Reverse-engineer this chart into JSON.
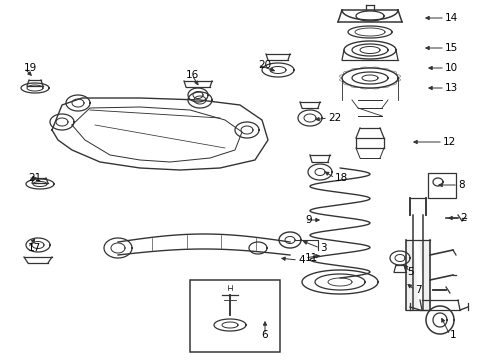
{
  "bg_color": "#ffffff",
  "line_color": "#333333",
  "fig_width": 4.89,
  "fig_height": 3.6,
  "dpi": 100,
  "font_size": 7.5,
  "lw_main": 0.9,
  "label_configs": [
    [
      "1",
      450,
      335,
      440,
      315,
      "left"
    ],
    [
      "2",
      460,
      218,
      445,
      218,
      "left"
    ],
    [
      "3",
      320,
      248,
      300,
      240,
      "left"
    ],
    [
      "4",
      298,
      260,
      278,
      258,
      "left"
    ],
    [
      "5",
      410,
      272,
      402,
      262,
      "center"
    ],
    [
      "6",
      265,
      335,
      265,
      318,
      "center"
    ],
    [
      "7",
      415,
      290,
      405,
      282,
      "left"
    ],
    [
      "8",
      458,
      185,
      435,
      185,
      "left"
    ],
    [
      "9",
      305,
      220,
      323,
      220,
      "left"
    ],
    [
      "10",
      445,
      68,
      425,
      68,
      "left"
    ],
    [
      "11",
      305,
      258,
      323,
      255,
      "left"
    ],
    [
      "12",
      443,
      142,
      410,
      142,
      "left"
    ],
    [
      "13",
      445,
      88,
      425,
      88,
      "left"
    ],
    [
      "14",
      445,
      18,
      422,
      18,
      "left"
    ],
    [
      "15",
      445,
      48,
      422,
      48,
      "left"
    ],
    [
      "16",
      192,
      75,
      200,
      88,
      "center"
    ],
    [
      "17",
      28,
      248,
      37,
      236,
      "left"
    ],
    [
      "18",
      335,
      178,
      322,
      170,
      "left"
    ],
    [
      "19",
      24,
      68,
      34,
      78,
      "left"
    ],
    [
      "20",
      258,
      65,
      278,
      72,
      "left"
    ],
    [
      "21",
      28,
      178,
      40,
      178,
      "left"
    ],
    [
      "22",
      328,
      118,
      312,
      120,
      "left"
    ]
  ]
}
